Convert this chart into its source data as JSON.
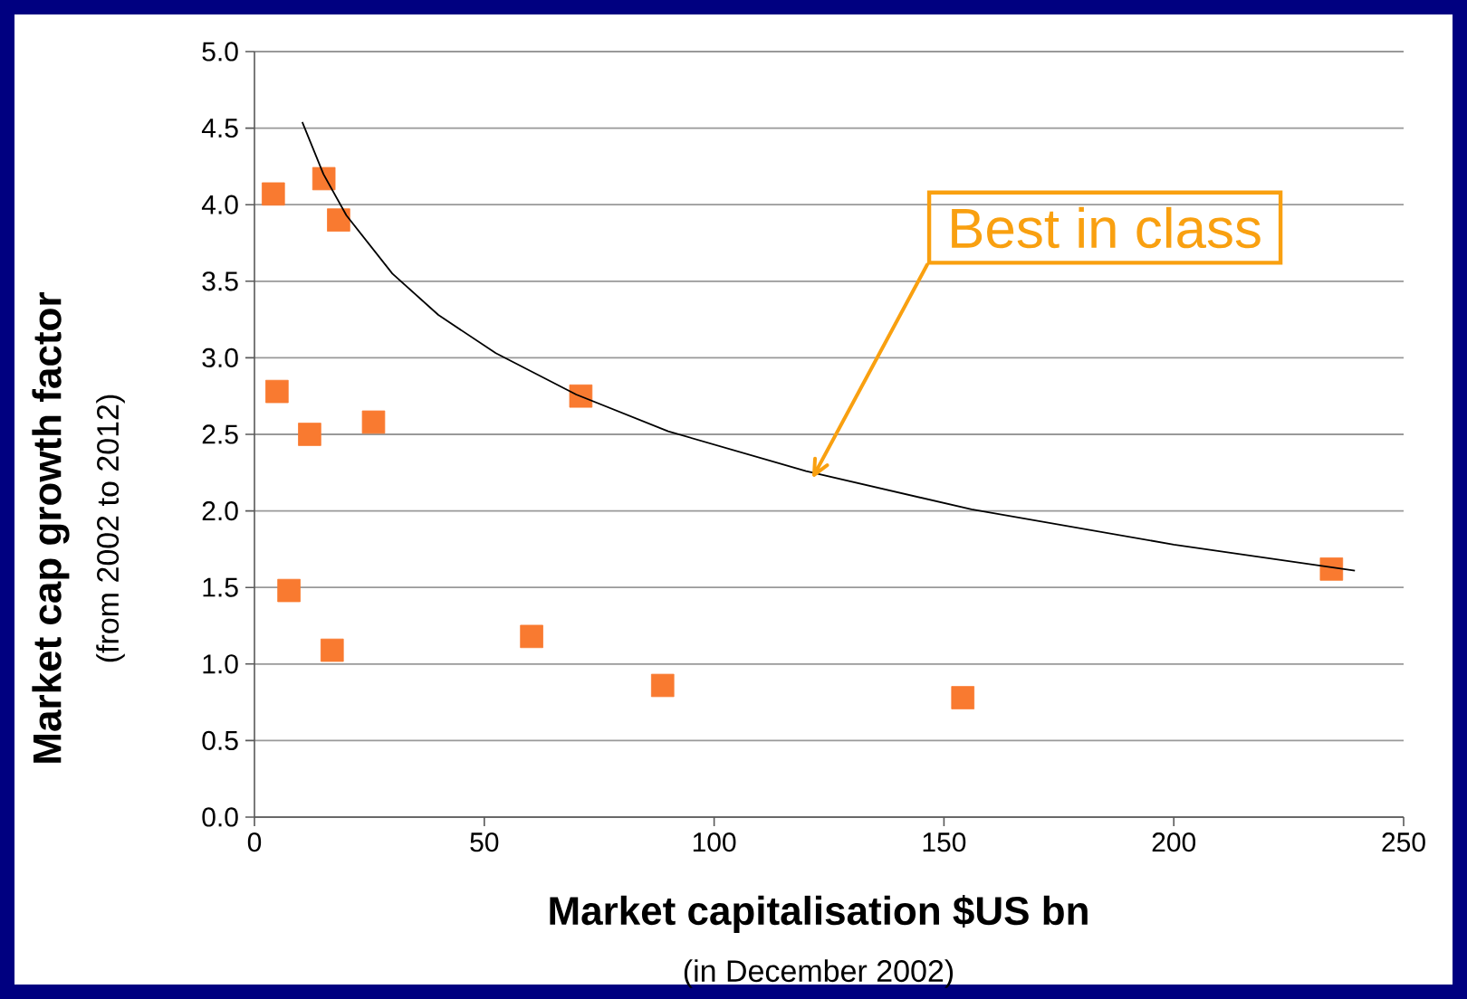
{
  "chart_data": {
    "type": "scatter",
    "xlabel": "Market capitalisation $US bn",
    "ylabel": "Market cap growth factor",
    "xlim": [
      0,
      250
    ],
    "xticks": [
      0,
      50,
      100,
      150,
      200,
      250
    ],
    "ylim": [
      0,
      5
    ],
    "yticks": [
      {
        "value": 0,
        "label": "0.0"
      },
      {
        "value": 0.5,
        "label": "0.5"
      },
      {
        "value": 1,
        "label": "1.0"
      },
      {
        "value": 1.5,
        "label": "1.5"
      },
      {
        "value": 2,
        "label": "2.0"
      },
      {
        "value": 2.5,
        "label": "2.5"
      },
      {
        "value": 3,
        "label": "3.0"
      },
      {
        "value": 3.5,
        "label": "3.5"
      },
      {
        "value": 4,
        "label": "4.0"
      },
      {
        "value": 4.5,
        "label": "4.5"
      },
      {
        "value": 5,
        "label": "5.0"
      }
    ],
    "grid": "y",
    "marker": "square",
    "series": [
      {
        "color": "#f97a30",
        "x": [
          4.1,
          15.1,
          18.3,
          4.9,
          12.0,
          25.9,
          71.0,
          7.5,
          16.9,
          60.3,
          88.8,
          154.1,
          234.3
        ],
        "values": [
          4.07,
          4.17,
          3.9,
          2.78,
          2.5,
          2.58,
          2.75,
          1.48,
          1.09,
          1.18,
          0.86,
          0.78,
          1.62
        ]
      },
      {
        "type": "line",
        "color": "#000000",
        "marker": "none",
        "x": [
          10.4,
          15,
          20,
          30,
          40,
          52.5,
          70,
          90,
          120,
          156,
          200,
          239.4
        ],
        "values": [
          4.54,
          4.2,
          3.93,
          3.55,
          3.28,
          3.03,
          2.76,
          2.52,
          2.26,
          2.01,
          1.78,
          1.61
        ]
      }
    ],
    "annotations": [
      "Best in class",
      "(from 2002 to  2012)",
      "(in December 2002)"
    ]
  }
}
